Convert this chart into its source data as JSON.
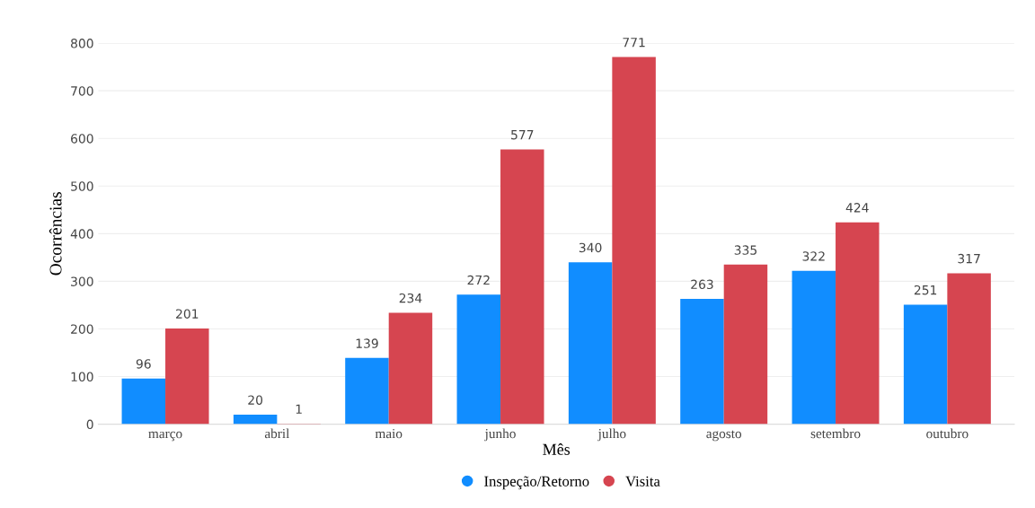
{
  "chart_data": {
    "type": "bar",
    "xlabel": "Mês",
    "ylabel": "Ocorrências",
    "categories": [
      "março",
      "abril",
      "maio",
      "junho",
      "julho",
      "agosto",
      "setembro",
      "outubro"
    ],
    "series": [
      {
        "name": "Inspeção/Retorno",
        "color": "#118dff",
        "values": [
          96,
          20,
          139,
          272,
          340,
          263,
          322,
          251
        ]
      },
      {
        "name": "Visita",
        "color": "#d64550",
        "values": [
          201,
          1,
          234,
          577,
          771,
          335,
          424,
          317
        ]
      }
    ],
    "ylim": [
      0,
      800
    ],
    "yticks": [
      0,
      100,
      200,
      300,
      400,
      500,
      600,
      700,
      800
    ],
    "grid": "y",
    "legend": "bottom",
    "data_labels": true
  }
}
